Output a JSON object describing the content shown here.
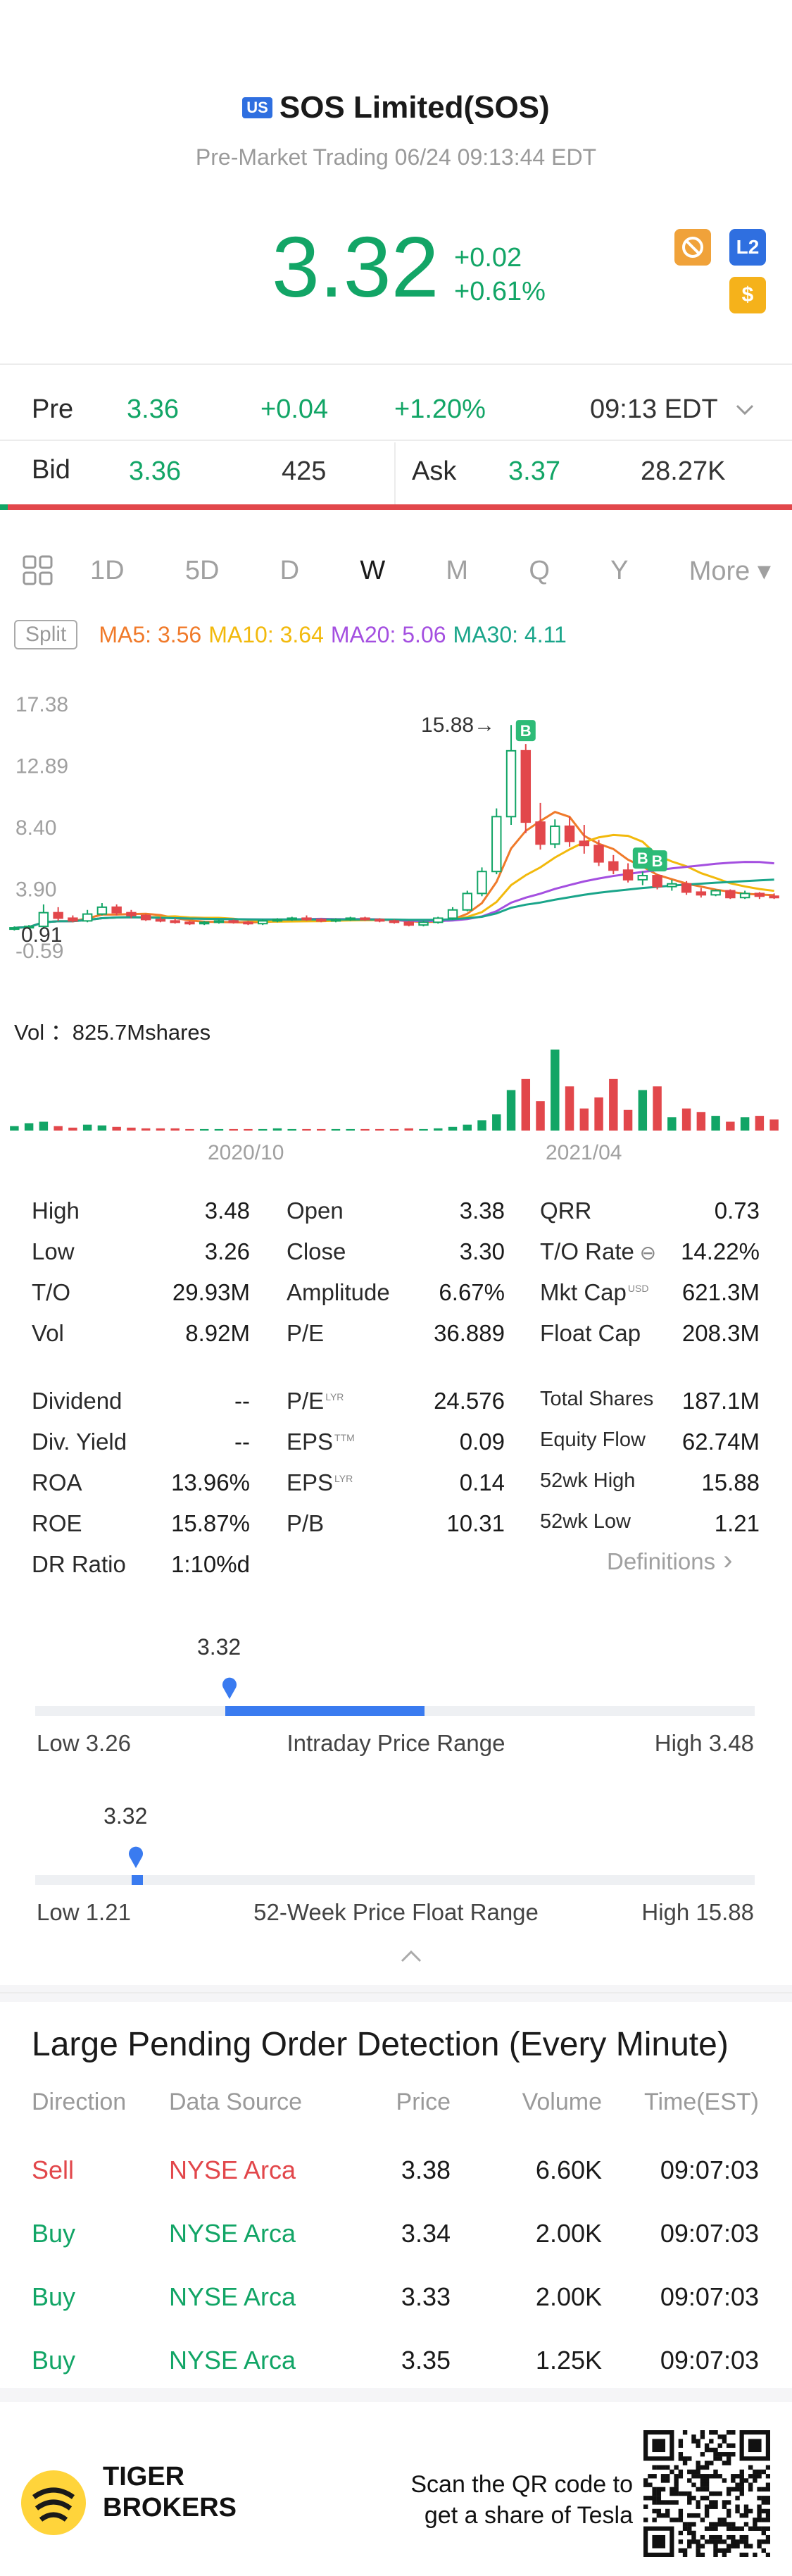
{
  "header": {
    "market_badge": "US",
    "title": "SOS Limited(SOS)",
    "session": "Pre-Market Trading 06/24 09:13:44 EDT",
    "price": "3.32",
    "change": "+0.02",
    "change_pct": "+0.61%",
    "badges": [
      {
        "icon": "no-short-icon",
        "label": "⊘",
        "color": "#f0a23a"
      },
      {
        "icon": "level2-icon",
        "label": "L2",
        "color": "#2f6fe0"
      },
      {
        "icon": "dollar-icon",
        "label": "$",
        "color": "#f5b21b"
      }
    ]
  },
  "pre": {
    "label": "Pre",
    "price": "3.36",
    "change": "+0.04",
    "change_pct": "+1.20%",
    "time": "09:13 EDT"
  },
  "quote": {
    "bid_label": "Bid",
    "bid_price": "3.36",
    "bid_size": "425",
    "ask_label": "Ask",
    "ask_price": "3.37",
    "ask_size": "28.27K"
  },
  "tabs": [
    "1D",
    "5D",
    "D",
    "W",
    "M",
    "Q",
    "Y",
    "More ▾"
  ],
  "active_tab": "W",
  "ma": {
    "split": "Split",
    "items": [
      {
        "label": "MA5: 3.56",
        "color": "#f07a2a"
      },
      {
        "label": "MA10: 3.64",
        "color": "#f2b90c"
      },
      {
        "label": "MA20: 5.06",
        "color": "#a44fe0"
      },
      {
        "label": "MA30: 4.11",
        "color": "#1aa58a"
      }
    ]
  },
  "chart_data": {
    "type": "candlestick",
    "y_ticks": [
      "17.38",
      "12.89",
      "8.40",
      "3.90",
      "-0.59"
    ],
    "ylim": [
      -0.59,
      17.38
    ],
    "marker_low": "0.91",
    "marker_high": "15.88→",
    "volume_label": "Vol ：825.7Mshares",
    "x_ticks": [
      "2020/10",
      "2021/04"
    ],
    "candles": [
      [
        1.0,
        1.2,
        0.9,
        1.1
      ],
      [
        1.1,
        1.3,
        1.0,
        1.2
      ],
      [
        1.2,
        2.8,
        1.1,
        2.2
      ],
      [
        2.2,
        2.6,
        1.6,
        1.8
      ],
      [
        1.8,
        2.0,
        1.5,
        1.6
      ],
      [
        1.6,
        2.4,
        1.5,
        2.1
      ],
      [
        2.1,
        2.9,
        2.0,
        2.6
      ],
      [
        2.6,
        2.8,
        2.0,
        2.2
      ],
      [
        2.2,
        2.4,
        1.8,
        2.0
      ],
      [
        2.0,
        2.1,
        1.6,
        1.7
      ],
      [
        1.7,
        1.9,
        1.5,
        1.6
      ],
      [
        1.6,
        1.8,
        1.4,
        1.5
      ],
      [
        1.5,
        1.6,
        1.3,
        1.4
      ],
      [
        1.4,
        1.6,
        1.3,
        1.5
      ],
      [
        1.5,
        1.7,
        1.4,
        1.6
      ],
      [
        1.6,
        1.7,
        1.4,
        1.5
      ],
      [
        1.5,
        1.6,
        1.3,
        1.4
      ],
      [
        1.4,
        1.7,
        1.3,
        1.6
      ],
      [
        1.6,
        1.8,
        1.5,
        1.7
      ],
      [
        1.7,
        1.9,
        1.6,
        1.8
      ],
      [
        1.8,
        2.0,
        1.6,
        1.7
      ],
      [
        1.7,
        1.8,
        1.5,
        1.6
      ],
      [
        1.6,
        1.8,
        1.5,
        1.7
      ],
      [
        1.7,
        1.9,
        1.6,
        1.8
      ],
      [
        1.8,
        1.9,
        1.6,
        1.7
      ],
      [
        1.7,
        1.8,
        1.5,
        1.6
      ],
      [
        1.6,
        1.7,
        1.4,
        1.5
      ],
      [
        1.5,
        1.6,
        1.2,
        1.3
      ],
      [
        1.3,
        1.6,
        1.2,
        1.5
      ],
      [
        1.5,
        1.9,
        1.4,
        1.8
      ],
      [
        1.8,
        2.6,
        1.7,
        2.4
      ],
      [
        2.4,
        3.8,
        2.3,
        3.6
      ],
      [
        3.6,
        5.5,
        3.4,
        5.2
      ],
      [
        5.2,
        9.8,
        5.0,
        9.2
      ],
      [
        9.2,
        15.88,
        8.6,
        14.0
      ],
      [
        14.0,
        14.5,
        8.0,
        8.8
      ],
      [
        8.8,
        10.2,
        6.8,
        7.2
      ],
      [
        7.2,
        9.0,
        6.9,
        8.5
      ],
      [
        8.5,
        9.2,
        7.0,
        7.4
      ],
      [
        7.4,
        8.6,
        6.5,
        7.1
      ],
      [
        7.1,
        7.5,
        5.6,
        5.9
      ],
      [
        5.9,
        6.4,
        5.0,
        5.3
      ],
      [
        5.3,
        5.8,
        4.4,
        4.6
      ],
      [
        4.6,
        5.2,
        4.2,
        4.9
      ],
      [
        4.9,
        5.0,
        3.9,
        4.1
      ],
      [
        4.1,
        4.6,
        3.8,
        4.3
      ],
      [
        4.3,
        4.5,
        3.5,
        3.7
      ],
      [
        3.7,
        4.0,
        3.3,
        3.5
      ],
      [
        3.5,
        3.9,
        3.4,
        3.8
      ],
      [
        3.8,
        3.9,
        3.2,
        3.3
      ],
      [
        3.3,
        3.8,
        3.2,
        3.6
      ],
      [
        3.6,
        3.7,
        3.2,
        3.4
      ],
      [
        3.4,
        3.6,
        3.2,
        3.3
      ]
    ],
    "volumes": [
      6,
      10,
      12,
      6,
      4,
      8,
      7,
      5,
      4,
      3,
      3,
      3,
      2,
      2,
      2,
      2,
      2,
      2,
      3,
      2,
      2,
      2,
      2,
      2,
      2,
      2,
      2,
      3,
      2,
      3,
      5,
      8,
      14,
      22,
      55,
      70,
      40,
      110,
      60,
      30,
      45,
      70,
      28,
      55,
      60,
      18,
      30,
      25,
      20,
      12,
      18,
      20,
      15
    ],
    "buy_markers": [
      35,
      43,
      44
    ]
  },
  "stats": {
    "col1": [
      {
        "label": "High",
        "value": "3.48"
      },
      {
        "label": "Low",
        "value": "3.26"
      },
      {
        "label": "T/O",
        "value": "29.93M"
      },
      {
        "label": "Vol",
        "value": "8.92M"
      }
    ],
    "col2": [
      {
        "label": "Open",
        "value": "3.38"
      },
      {
        "label": "Close",
        "value": "3.30"
      },
      {
        "label": "Amplitude",
        "value": "6.67%"
      },
      {
        "label": "P/E",
        "value": "36.889"
      }
    ],
    "col3": [
      {
        "label": "QRR",
        "value": "0.73"
      },
      {
        "label": "T/O Rate",
        "value": "14.22%"
      },
      {
        "label": "Mkt Cap",
        "value": "621.3M",
        "sup": "USD"
      },
      {
        "label": "Float Cap",
        "value": "208.3M"
      }
    ],
    "col1b": [
      {
        "label": "Dividend",
        "value": "--"
      },
      {
        "label": "Div. Yield",
        "value": "--"
      },
      {
        "label": "ROA",
        "value": "13.96%"
      },
      {
        "label": "ROE",
        "value": "15.87%"
      },
      {
        "label": "DR Ratio",
        "value": "1:10%d"
      }
    ],
    "col2b": [
      {
        "label": "P/E",
        "sup": "LYR",
        "value": "24.576"
      },
      {
        "label": "EPS",
        "sup": "TTM",
        "value": "0.09"
      },
      {
        "label": "EPS",
        "sup": "LYR",
        "value": "0.14"
      },
      {
        "label": "P/B",
        "value": "10.31"
      }
    ],
    "col3b": [
      {
        "label": "Total Shares",
        "value": "187.1M"
      },
      {
        "label": "Equity Flow",
        "value": "62.74M"
      },
      {
        "label": "52wk High",
        "value": "15.88"
      },
      {
        "label": "52wk Low",
        "value": "1.21"
      }
    ],
    "definitions": "Definitions"
  },
  "ranges": {
    "intraday": {
      "current": "3.32",
      "low": "Low 3.26",
      "title": "Intraday Price Range",
      "high": "High 3.48",
      "position": 0.27
    },
    "week52": {
      "current": "3.32",
      "low": "Low 1.21",
      "title": "52-Week Price Float Range",
      "high": "High 15.88",
      "position": 0.14
    }
  },
  "orders": {
    "title": "Large Pending Order Detection (Every Minute)",
    "headers": [
      "Direction",
      "Data Source",
      "Price",
      "Volume",
      "Time(EST)"
    ],
    "rows": [
      {
        "direction": "Sell",
        "source": "NYSE Arca",
        "price": "3.38",
        "volume": "6.60K",
        "time": "09:07:03"
      },
      {
        "direction": "Buy",
        "source": "NYSE Arca",
        "price": "3.34",
        "volume": "2.00K",
        "time": "09:07:03"
      },
      {
        "direction": "Buy",
        "source": "NYSE Arca",
        "price": "3.33",
        "volume": "2.00K",
        "time": "09:07:03"
      },
      {
        "direction": "Buy",
        "source": "NYSE Arca",
        "price": "3.35",
        "volume": "1.25K",
        "time": "09:07:03"
      }
    ]
  },
  "footer": {
    "brand_line1": "TIGER",
    "brand_line2": "BROKERS",
    "qr_text_1": "Scan the QR code to",
    "qr_text_2": "get a share of Tesla"
  }
}
